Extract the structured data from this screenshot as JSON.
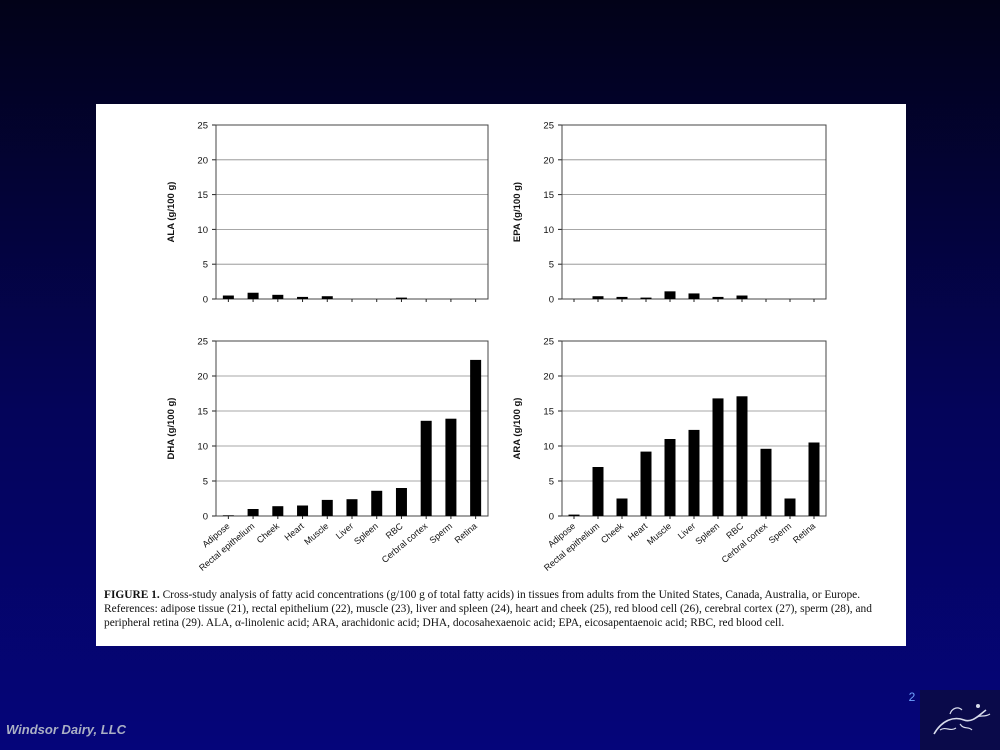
{
  "chart_data": [
    {
      "type": "bar",
      "ylabel": "ALA (g/100 g)",
      "ylim": [
        0,
        25
      ],
      "yticks": [
        0,
        5,
        10,
        15,
        20,
        25
      ],
      "grid": true,
      "categories": [
        "Adipose",
        "Rectal epithelium",
        "Cheek",
        "Heart",
        "Muscle",
        "Liver",
        "Spleen",
        "RBC",
        "Cerbral cortex",
        "Sperm",
        "Retina"
      ],
      "values": [
        0.5,
        0.9,
        0.6,
        0.3,
        0.4,
        0,
        0,
        0.2,
        0,
        0,
        0
      ],
      "show_category_labels": false
    },
    {
      "type": "bar",
      "ylabel": "EPA (g/100 g)",
      "ylim": [
        0,
        25
      ],
      "yticks": [
        0,
        5,
        10,
        15,
        20,
        25
      ],
      "grid": true,
      "categories": [
        "Adipose",
        "Rectal epithelium",
        "Cheek",
        "Heart",
        "Muscle",
        "Liver",
        "Spleen",
        "RBC",
        "Cerbral cortex",
        "Sperm",
        "Retina"
      ],
      "values": [
        0,
        0.4,
        0.3,
        0.2,
        1.1,
        0.8,
        0.3,
        0.5,
        0,
        0,
        0
      ],
      "show_category_labels": false
    },
    {
      "type": "bar",
      "ylabel": "DHA (g/100 g)",
      "ylim": [
        0,
        25
      ],
      "yticks": [
        0,
        5,
        10,
        15,
        20,
        25
      ],
      "grid": true,
      "categories": [
        "Adipose",
        "Rectal epithelium",
        "Cheek",
        "Heart",
        "Muscle",
        "Liver",
        "Spleen",
        "RBC",
        "Cerbral cortex",
        "Sperm",
        "Retina"
      ],
      "values": [
        0.1,
        1.0,
        1.4,
        1.5,
        2.3,
        2.4,
        3.6,
        4.0,
        13.6,
        13.9,
        22.3
      ],
      "show_category_labels": true
    },
    {
      "type": "bar",
      "ylabel": "ARA (g/100 g)",
      "ylim": [
        0,
        25
      ],
      "yticks": [
        0,
        5,
        10,
        15,
        20,
        25
      ],
      "grid": true,
      "categories": [
        "Adipose",
        "Rectal epithelium",
        "Cheek",
        "Heart",
        "Muscle",
        "Liver",
        "Spleen",
        "RBC",
        "Cerbral cortex",
        "Sperm",
        "Retina"
      ],
      "values": [
        0.2,
        7.0,
        2.5,
        9.2,
        11.0,
        12.3,
        16.8,
        17.1,
        9.6,
        2.5,
        10.5
      ],
      "show_category_labels": true
    }
  ],
  "caption": {
    "label": "FIGURE 1.",
    "text": "Cross-study analysis of fatty acid concentrations (g/100 g of total fatty acids) in tissues from adults from the United States, Canada, Australia, or Europe. References: adipose tissue (21), rectal epithelium (22), muscle (23), liver and spleen (24), heart and cheek (25), red blood cell (26), cerebral cortex (27), sperm (28), and peripheral retina (29). ALA, α-linolenic acid; ARA, arachidonic acid; DHA, docosahexaenoic acid; EPA, eicosapentaenoic acid; RBC, red blood cell."
  },
  "slide": {
    "page_number": "2",
    "footer": "Windsor Dairy, LLC"
  }
}
